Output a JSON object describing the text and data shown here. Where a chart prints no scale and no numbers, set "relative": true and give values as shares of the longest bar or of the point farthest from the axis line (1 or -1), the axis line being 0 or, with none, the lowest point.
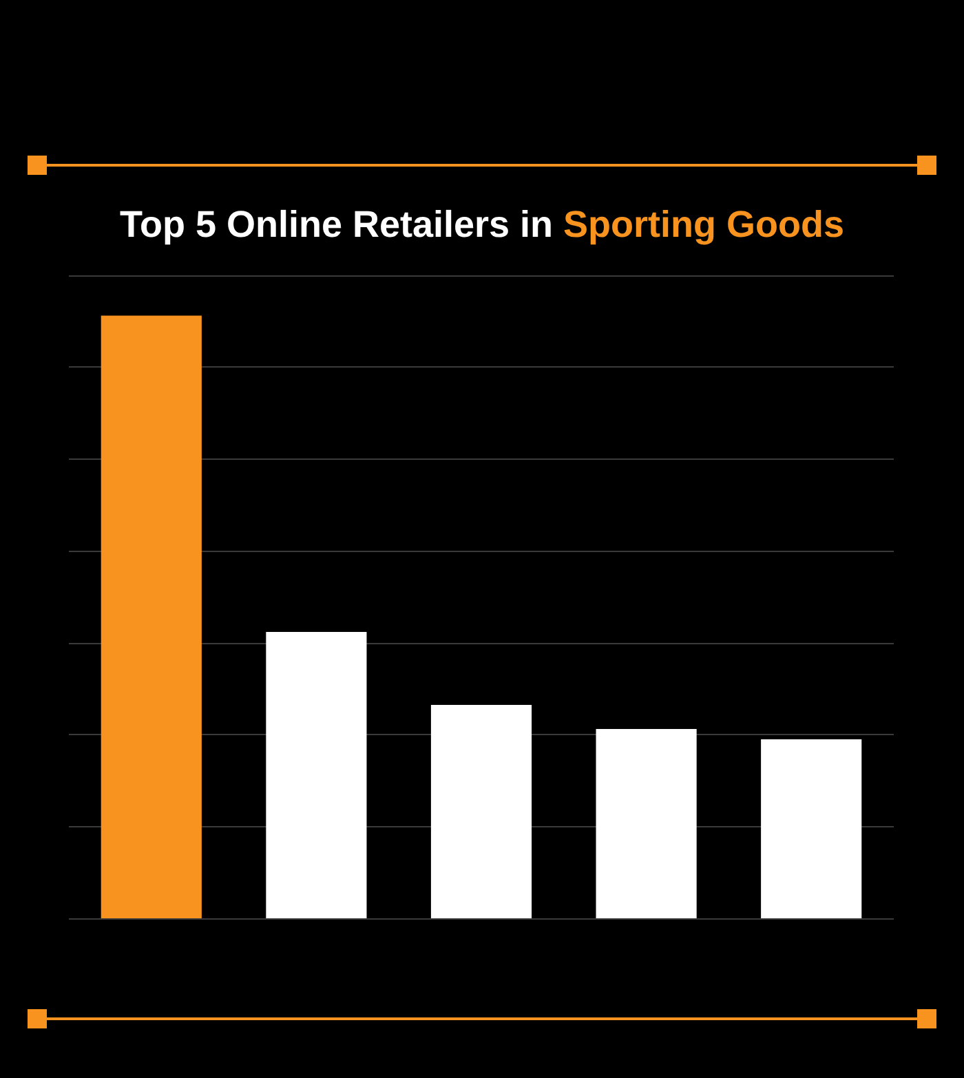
{
  "chart_data": {
    "type": "bar",
    "title": "Top 5 Online Retailers in Sporting Goods",
    "categories": [
      null,
      null,
      null,
      null,
      null
    ],
    "values": [
      1,
      0.475,
      0.354,
      0.314,
      0.297
    ],
    "colors": [
      "#f7931e",
      "#ffffff",
      "#ffffff",
      "#ffffff",
      "#ffffff"
    ],
    "relative": true,
    "grid": true
  }
}
